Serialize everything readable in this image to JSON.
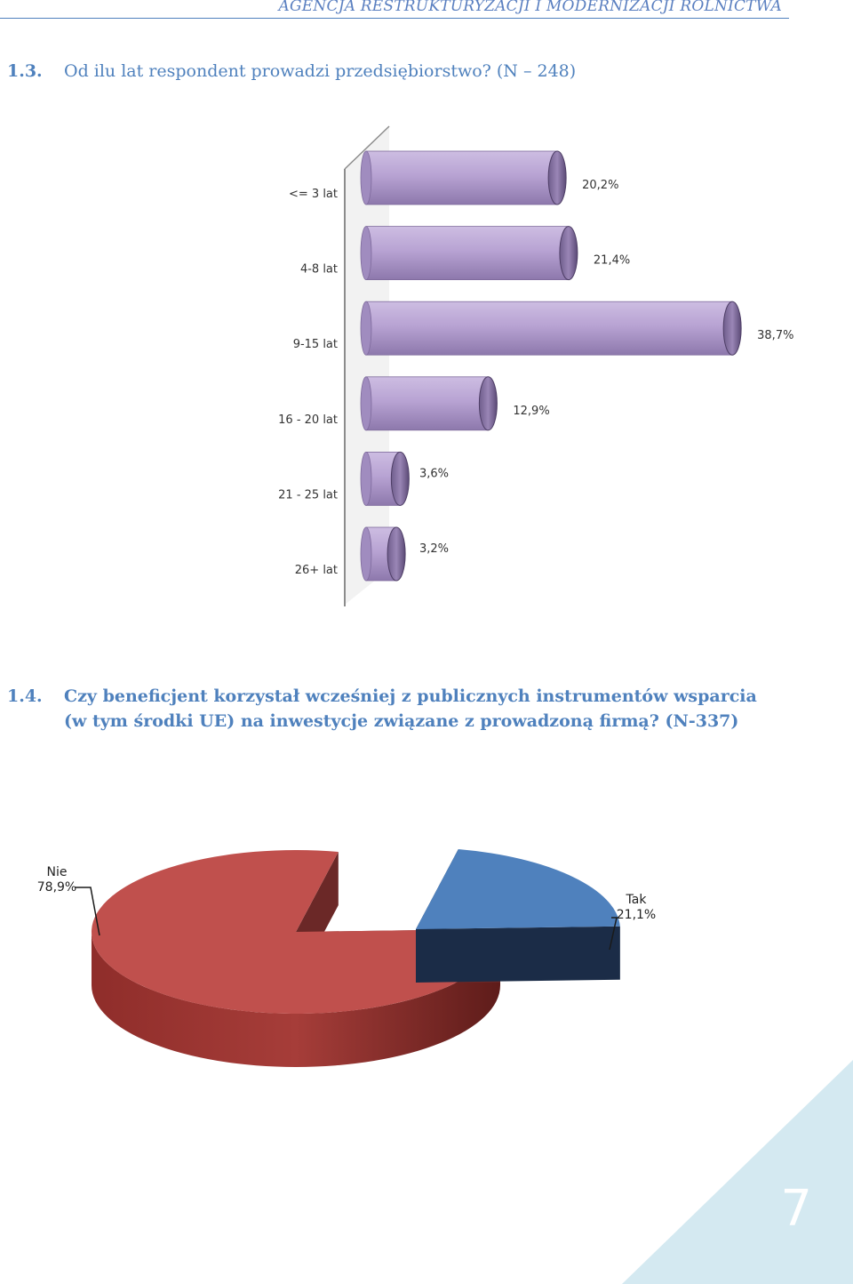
{
  "header": {
    "title": "AGENCJA RESTRUKTURYZACJI I MODERNIZACJI ROLNICTWA"
  },
  "section1": {
    "number": "1.3.",
    "title": "Od ilu lat respondent prowadzi przedsiębiorstwo? (N – 248)"
  },
  "section2": {
    "number": "1.4.",
    "title_line1": "Czy beneficjent korzystał wcześniej z publicznych instrumentów wsparcia",
    "title_line2": "(w tym środki UE) na inwestycje związane z prowadzoną firmą? (N-337)"
  },
  "page_number": "7",
  "colors": {
    "bar": "#b8a3d3",
    "pie_nie": "#c0504d",
    "pie_tak": "#4f81bd",
    "accent": "#4f81bd"
  },
  "chart_data": [
    {
      "type": "bar",
      "orientation": "horizontal",
      "categories": [
        "<= 3 lat",
        "4-8 lat",
        "9-15 lat",
        "16 - 20 lat",
        "21 - 25 lat",
        "26+ lat"
      ],
      "values": [
        20.2,
        21.4,
        38.7,
        12.9,
        3.6,
        3.2
      ],
      "value_labels": [
        "20,2%",
        "21,4%",
        "38,7%",
        "12,9%",
        "3,6%",
        "3,2%"
      ]
    },
    {
      "type": "pie",
      "categories": [
        "Nie",
        "Tak"
      ],
      "values": [
        78.9,
        21.1
      ],
      "value_labels": [
        "78,9%",
        "21,1%"
      ]
    }
  ]
}
